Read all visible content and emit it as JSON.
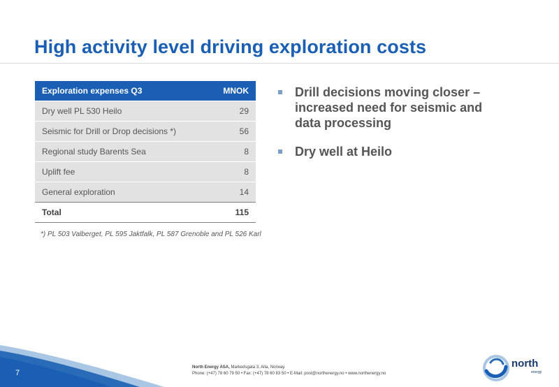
{
  "slide": {
    "title": "High activity level driving exploration costs",
    "page_number": "7"
  },
  "table": {
    "header": {
      "label": "Exploration expenses  Q3",
      "unit": "MNOK"
    },
    "rows": [
      {
        "label": "Dry well PL 530 Heilo",
        "value": "29"
      },
      {
        "label": "Seismic for Drill or Drop decisions *)",
        "value": "56"
      },
      {
        "label": "Regional study Barents Sea",
        "value": "8"
      },
      {
        "label": "Uplift fee",
        "value": "8"
      },
      {
        "label": "General exploration",
        "value": "14"
      }
    ],
    "total": {
      "label": "Total",
      "value": "115"
    }
  },
  "footnote": "*) PL 503 Valberget, PL 595 Jaktfalk, PL 587 Grenoble and PL 526 Karl",
  "bullets": [
    "Drill decisions moving closer – increased need for seismic and data processing",
    "Dry well at Heilo"
  ],
  "footer": {
    "company": "North Energy ASA,",
    "address": " Markedsgata 3, Alta, Norway.",
    "contact": "Phone: (+47) 78 60 79 50  • Fax: (+47) 78 60 83 50  • E-Mail: post@northenergy.no  •  www.northenergy.no"
  },
  "logo": {
    "name": "north",
    "sub": "energy"
  },
  "colors": {
    "accent": "#1a5fb4",
    "table_row": "#e2e2e2",
    "text": "#555555",
    "bullet": "#7b9fc7"
  }
}
